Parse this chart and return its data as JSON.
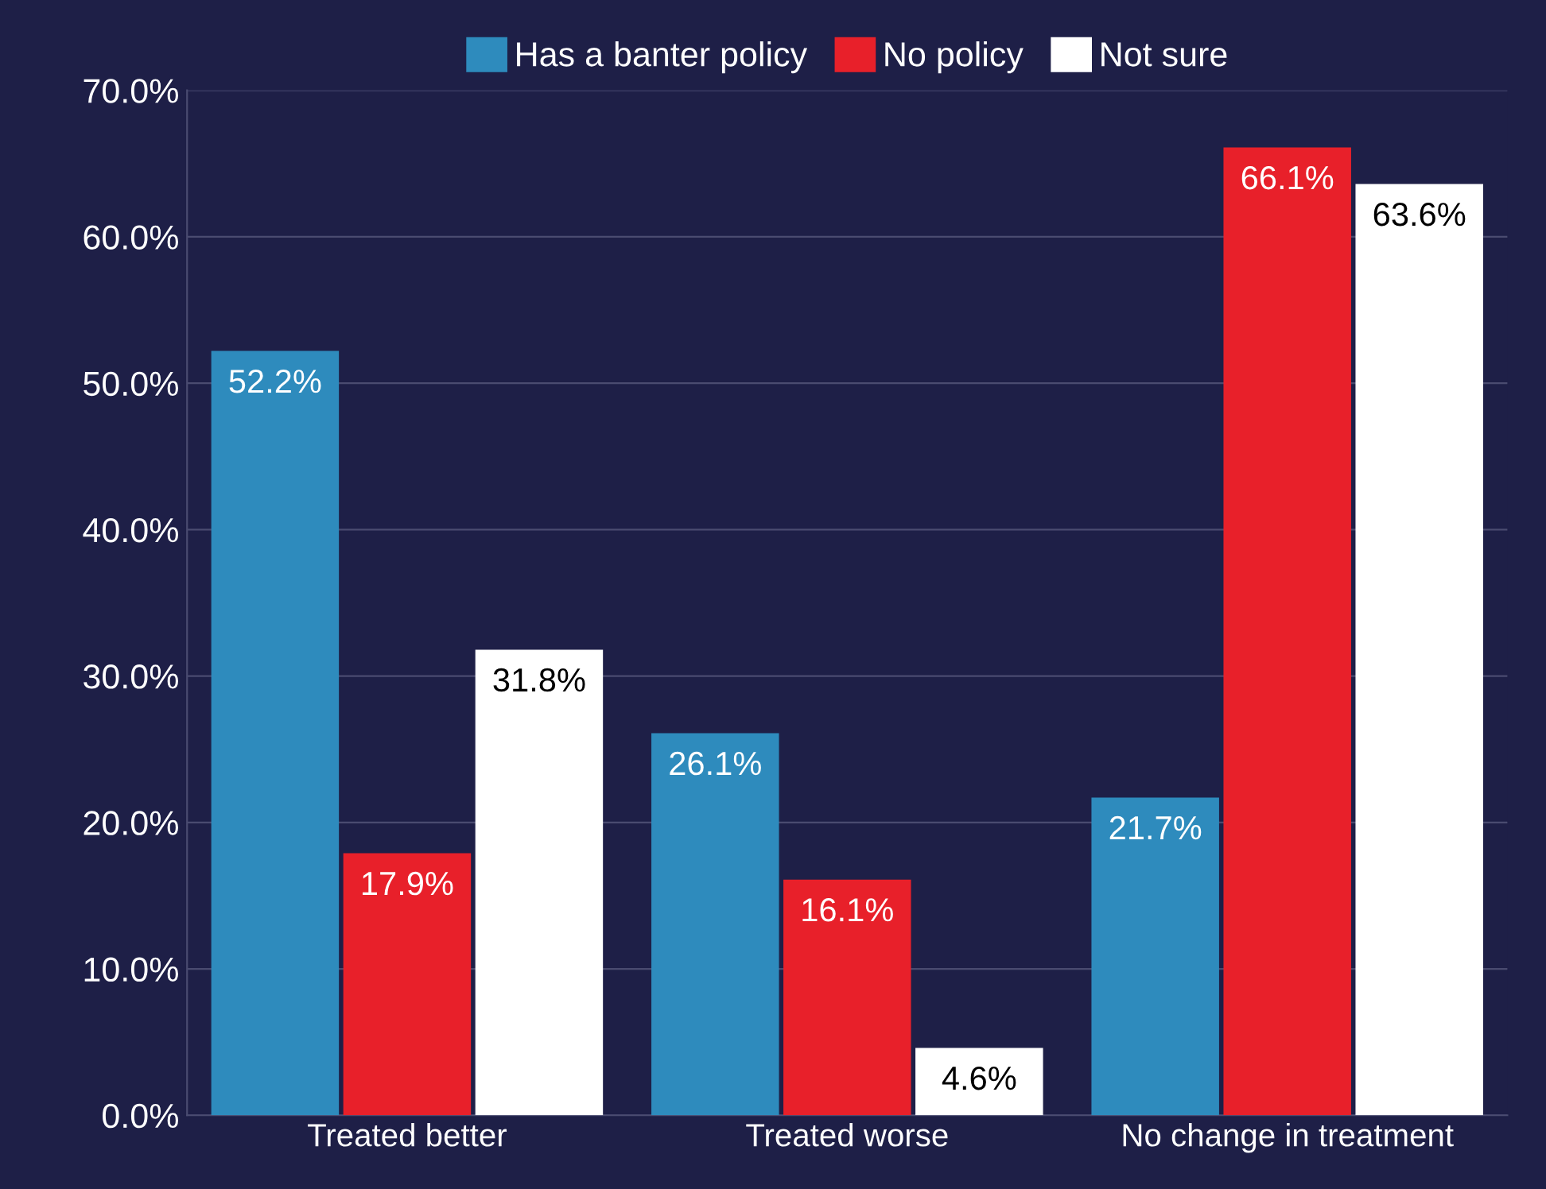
{
  "chart_data": {
    "type": "bar",
    "categories": [
      "Treated better",
      "Treated worse",
      "No change in treatment"
    ],
    "series": [
      {
        "name": "Has a banter policy",
        "color": "#2e8bbd",
        "values": [
          52.2,
          26.1,
          21.7
        ],
        "value_labels": [
          "52.2%",
          "26.1%",
          "21.7%"
        ]
      },
      {
        "name": "No policy",
        "color": "#e8202a",
        "values": [
          17.9,
          16.1,
          66.1
        ],
        "value_labels": [
          "17.9%",
          "16.1%",
          "66.1%"
        ]
      },
      {
        "name": "Not sure",
        "color": "#ffffff",
        "values": [
          31.8,
          4.6,
          63.6
        ],
        "value_labels": [
          "31.8%",
          "4.6%",
          "63.6%"
        ]
      }
    ],
    "ylim": [
      0,
      70
    ],
    "yticks": [
      {
        "value": 0,
        "label": "0.0%"
      },
      {
        "value": 10,
        "label": "10.0%"
      },
      {
        "value": 20,
        "label": "20.0%"
      },
      {
        "value": 30,
        "label": "30.0%"
      },
      {
        "value": 40,
        "label": "40.0%"
      },
      {
        "value": 50,
        "label": "50.0%"
      },
      {
        "value": 60,
        "label": "60.0%"
      },
      {
        "value": 70,
        "label": "70.0%"
      }
    ],
    "grid": "y",
    "legend": "top"
  }
}
